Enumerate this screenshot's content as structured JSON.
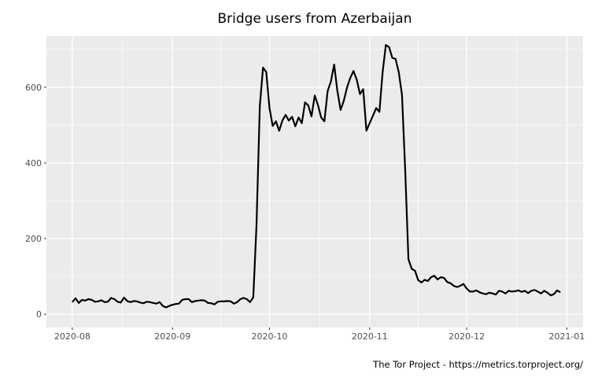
{
  "chart_data": {
    "type": "line",
    "title": "Bridge users from Azerbaijan",
    "xlabel": "",
    "ylabel": "",
    "caption": "The Tor Project - https://metrics.torproject.org/",
    "start_date": "2020-08-01",
    "x_ticks": [
      "2020-08",
      "2020-09",
      "2020-10",
      "2020-11",
      "2020-12",
      "2021-01"
    ],
    "y_ticks": [
      0,
      200,
      400,
      600
    ],
    "ylim": [
      -35,
      735
    ],
    "xlim": [
      "2020-07-24",
      "2021-01-06"
    ],
    "grid": true,
    "line_color": "#000000",
    "panel_color": "#ebebeb",
    "values": [
      32,
      42,
      30,
      38,
      36,
      40,
      38,
      33,
      34,
      37,
      32,
      33,
      43,
      40,
      33,
      31,
      44,
      35,
      32,
      35,
      34,
      31,
      29,
      33,
      32,
      30,
      28,
      32,
      22,
      18,
      22,
      25,
      27,
      28,
      38,
      40,
      40,
      32,
      35,
      36,
      37,
      36,
      30,
      29,
      26,
      33,
      34,
      34,
      35,
      34,
      28,
      32,
      40,
      43,
      40,
      32,
      45,
      235,
      550,
      652,
      640,
      545,
      498,
      510,
      485,
      512,
      527,
      512,
      522,
      497,
      520,
      505,
      560,
      552,
      523,
      578,
      553,
      520,
      510,
      590,
      615,
      660,
      590,
      540,
      565,
      600,
      625,
      643,
      620,
      582,
      595,
      485,
      505,
      525,
      545,
      535,
      640,
      712,
      706,
      678,
      675,
      640,
      580,
      380,
      145,
      120,
      115,
      90,
      84,
      91,
      88,
      98,
      102,
      92,
      98,
      96,
      85,
      82,
      75,
      72,
      75,
      80,
      68,
      60,
      60,
      63,
      58,
      55,
      53,
      57,
      55,
      52,
      62,
      60,
      55,
      62,
      60,
      61,
      63,
      59,
      62,
      56,
      62,
      64,
      60,
      55,
      62,
      57,
      50,
      53,
      63,
      58
    ]
  }
}
